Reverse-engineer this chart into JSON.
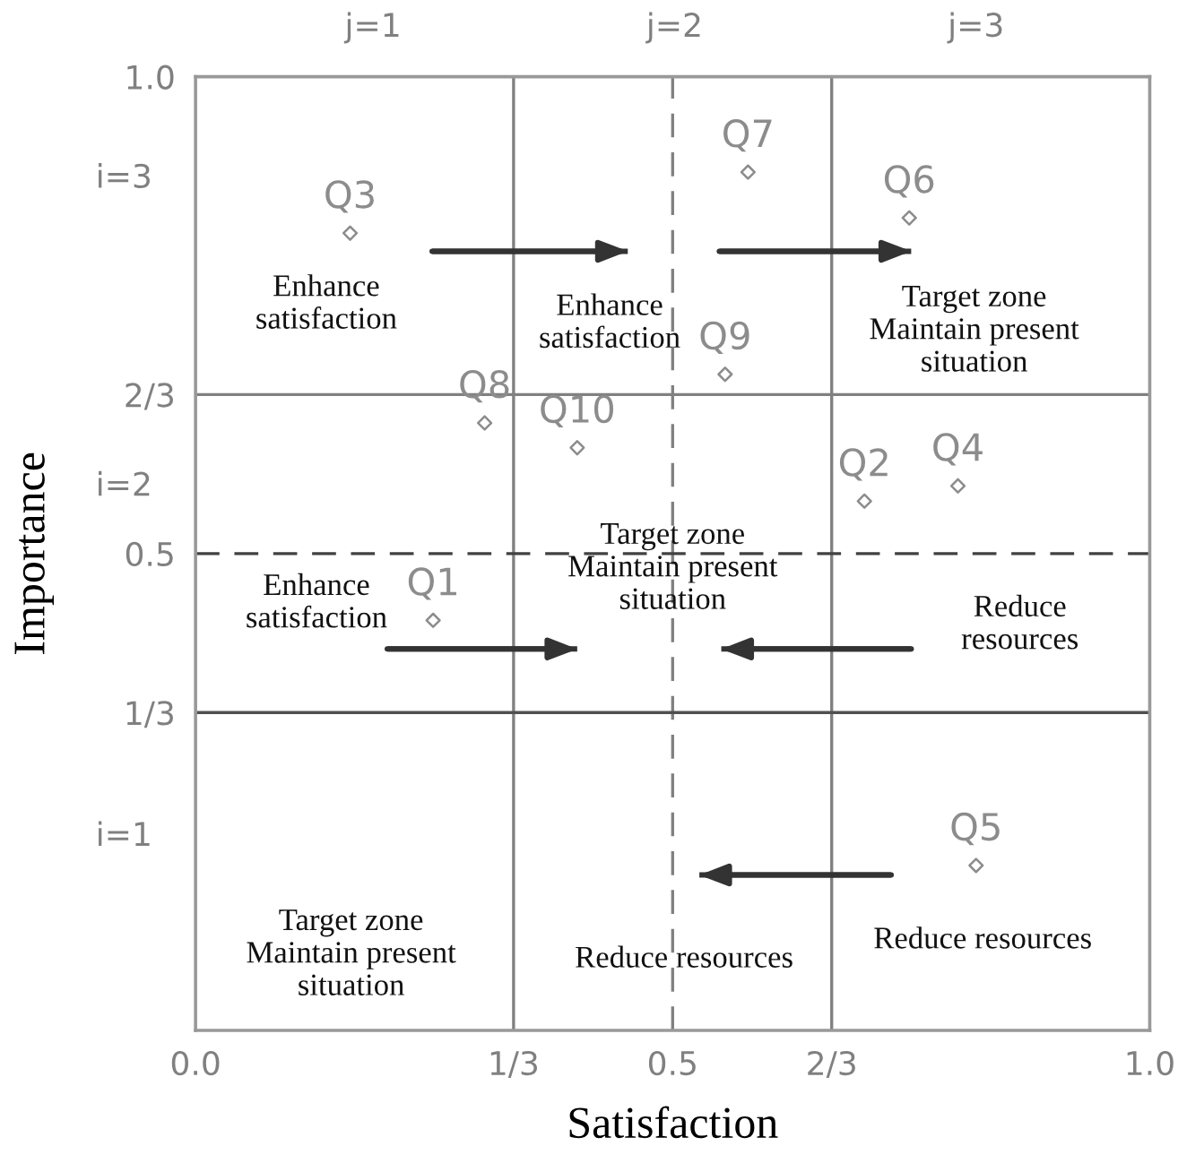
{
  "chart_data": {
    "type": "scatter",
    "xlabel": "Satisfaction",
    "ylabel": "Importance",
    "xlim": [
      0,
      1
    ],
    "ylim": [
      0,
      1
    ],
    "xticks": [
      {
        "value": 0,
        "label": "0.0"
      },
      {
        "value": 0.3333,
        "label": "1/3"
      },
      0.5,
      {
        "value": 0.6667,
        "label": "2/3"
      },
      {
        "value": 1,
        "label": "1.0"
      }
    ],
    "yticks": [
      {
        "value": 0.3333,
        "label": "1/3"
      },
      0.5,
      {
        "value": 0.6667,
        "label": "2/3"
      },
      {
        "value": 1,
        "label": "1.0"
      }
    ],
    "grid": false,
    "legend": false,
    "marker": "diamond",
    "series": [
      {
        "color": "#8c8c8c",
        "x": [
          0.249,
          0.701,
          0.162,
          0.799,
          0.818,
          0.748,
          0.579,
          0.303,
          0.555,
          0.4
        ],
        "values": [
          0.43,
          0.555,
          0.836,
          0.571,
          0.173,
          0.852,
          0.9,
          0.637,
          0.688,
          0.611
        ]
      },
      {
        "type": "line",
        "marker": "none",
        "color": "#333333",
        "x": [
          0.248,
          0.453
        ],
        "values": [
          0.817,
          0.817
        ]
      },
      {
        "type": "line",
        "marker": "none",
        "color": "#333333",
        "x": [
          0.549,
          0.75
        ],
        "values": [
          0.817,
          0.817
        ]
      },
      {
        "type": "line",
        "marker": "none",
        "color": "#333333",
        "x": [
          0.201,
          0.4
        ],
        "values": [
          0.4,
          0.4
        ]
      },
      {
        "type": "line",
        "marker": "none",
        "color": "#333333",
        "x": [
          0.75,
          0.551
        ],
        "values": [
          0.4,
          0.4
        ]
      },
      {
        "type": "line",
        "marker": "none",
        "color": "#333333",
        "x": [
          0.729,
          0.528
        ],
        "values": [
          0.163,
          0.163
        ]
      }
    ],
    "ref_lines": [
      {
        "axis": "x",
        "value": 0.3333,
        "color": "#808080",
        "line_style": "solid"
      },
      {
        "axis": "x",
        "value": 0.6667,
        "color": "#808080",
        "line_style": "solid"
      },
      {
        "axis": "x",
        "value": 0.5,
        "color": "#808080",
        "line_style": "dashed"
      },
      {
        "axis": "y",
        "value": 0.3333,
        "color": "#505050",
        "line_style": "solid"
      },
      {
        "axis": "y",
        "value": 0.6667,
        "color": "#808080",
        "line_style": "solid"
      },
      {
        "axis": "y",
        "value": 0.5,
        "color": "#404040",
        "line_style": "dashed"
      }
    ],
    "annotations": [
      {
        "text": "Q1",
        "x": 0.249,
        "y": 0.43
      },
      {
        "text": "Q2",
        "x": 0.701,
        "y": 0.555
      },
      {
        "text": "Q3",
        "x": 0.162,
        "y": 0.836
      },
      {
        "text": "Q4",
        "x": 0.799,
        "y": 0.571
      },
      {
        "text": "Q5",
        "x": 0.818,
        "y": 0.173
      },
      {
        "text": "Q6",
        "x": 0.748,
        "y": 0.852
      },
      {
        "text": "Q7",
        "x": 0.579,
        "y": 0.9
      },
      {
        "text": "Q8",
        "x": 0.303,
        "y": 0.637
      },
      {
        "text": "Q9",
        "x": 0.555,
        "y": 0.688
      },
      {
        "text": "Q10",
        "x": 0.4,
        "y": 0.611
      },
      "j=1",
      "j=2",
      "j=3",
      "i=3",
      "i=2",
      "i=1",
      "Enhance\nsatisfaction",
      "Enhance\nsatisfaction",
      "Target zone\nMaintain present\nsituation",
      "Target zone\nMaintain present\nsituation",
      {
        "text": "Enhance\nsatisfaction",
        "x": 0.201,
        "y": 0.4
      },
      "Reduce\nresources",
      "Target zone\nMaintain present\nsituation",
      "Reduce resources",
      "Reduce resources"
    ]
  }
}
